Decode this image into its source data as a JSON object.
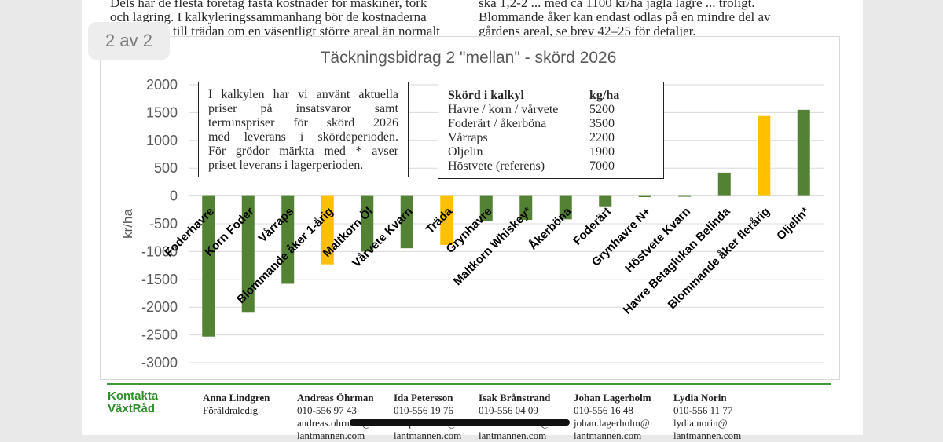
{
  "document": {
    "top_left_lines": [
      "Dels har de flesta företag fasta kostnader för maskiner, tork",
      "och lagring. I kalkyleringssammanhang bör de kostnaderna",
      "till trädan om en väsentligt större areal än normalt"
    ],
    "top_right_lines": [
      "ska 1,2-2 ... med ca 1100 kr/ha jagla lagre ... troligt.",
      "Blommande åker kan endast odlas på en mindre del av",
      "gårdens areal, se brev 42–25 för detaljer."
    ]
  },
  "pager": {
    "label": "2 av 2"
  },
  "chart_data": {
    "type": "bar",
    "title": "Täckningsbidrag 2 \"mellan\" - skörd 2026",
    "ylabel": "kr/ha",
    "xlabel": "",
    "ylim": [
      -3000,
      2000
    ],
    "yticks": [
      2000,
      1500,
      1000,
      500,
      0,
      -500,
      -1000,
      -1500,
      -2000,
      -2500,
      -3000
    ],
    "grid": true,
    "categories": [
      "Foderhavre",
      "Korn Foder",
      "Vårraps",
      "Blommande åker 1-årig",
      "Maltkorn Öl",
      "Vårvete Kvarn",
      "Träda",
      "Grynhavre",
      "Maltkorn Whiskey*",
      "Åkerböna",
      "Foderärt",
      "Grynhavre N+",
      "Höstvete Kvarn",
      "Havre Betaglukan Belinda",
      "Blommande åker flerårig",
      "Oljelin*"
    ],
    "values": [
      -2530,
      -2100,
      -1580,
      -1230,
      -1000,
      -940,
      -880,
      -450,
      -430,
      -420,
      -200,
      -20,
      0,
      420,
      1440,
      1550
    ],
    "colors": [
      "#548235",
      "#548235",
      "#548235",
      "#ffc000",
      "#548235",
      "#548235",
      "#ffc000",
      "#548235",
      "#548235",
      "#548235",
      "#548235",
      "#548235",
      "#548235",
      "#548235",
      "#ffc000",
      "#548235"
    ],
    "annotation_left": [
      "I kalkylen har vi använt aktuella",
      "priser på insatsvaror samt",
      "terminspriser för skörd 2026",
      "med leverans i skördeperioden.",
      "För grödor märkta med * avser",
      "priset leverans i lagerperioden."
    ],
    "annotation_table": {
      "header": [
        "Skörd i kalkyl",
        "kg/ha"
      ],
      "rows": [
        [
          "Havre / korn / vårvete",
          "5200"
        ],
        [
          "Foderärt / åkerböna",
          "3500"
        ],
        [
          "Vårraps",
          "2200"
        ],
        [
          "Oljelin",
          "1900"
        ],
        [
          "Höstvete (referens)",
          "7000"
        ]
      ]
    }
  },
  "contacts": {
    "title_line1": "Kontakta",
    "title_line2": "VäxtRåd",
    "people": [
      {
        "name": "Anna Lindgren",
        "line2": "Föräldraledig",
        "line3": "",
        "line4": ""
      },
      {
        "name": "Andreas Öhrman",
        "line2": "010-556 97 43",
        "line3": "andreas.ohrman@",
        "line4": "lantmannen.com"
      },
      {
        "name": "Ida Petersson",
        "line2": "010-556 19 76",
        "line3": "ida.petersson@",
        "line4": "lantmannen.com"
      },
      {
        "name": "Isak Brånstrand",
        "line2": "010-556 04 09",
        "line3": "isak.branstrand@",
        "line4": "lantmannen.com"
      },
      {
        "name": "Johan Lagerholm",
        "line2": "010-556 16 48",
        "line3": "johan.lagerholm@",
        "line4": "lantmannen.com"
      },
      {
        "name": "Lydia Norin",
        "line2": "010-556 11 77",
        "line3": "lydia.norin@",
        "line4": "lantmannen.com"
      }
    ]
  }
}
